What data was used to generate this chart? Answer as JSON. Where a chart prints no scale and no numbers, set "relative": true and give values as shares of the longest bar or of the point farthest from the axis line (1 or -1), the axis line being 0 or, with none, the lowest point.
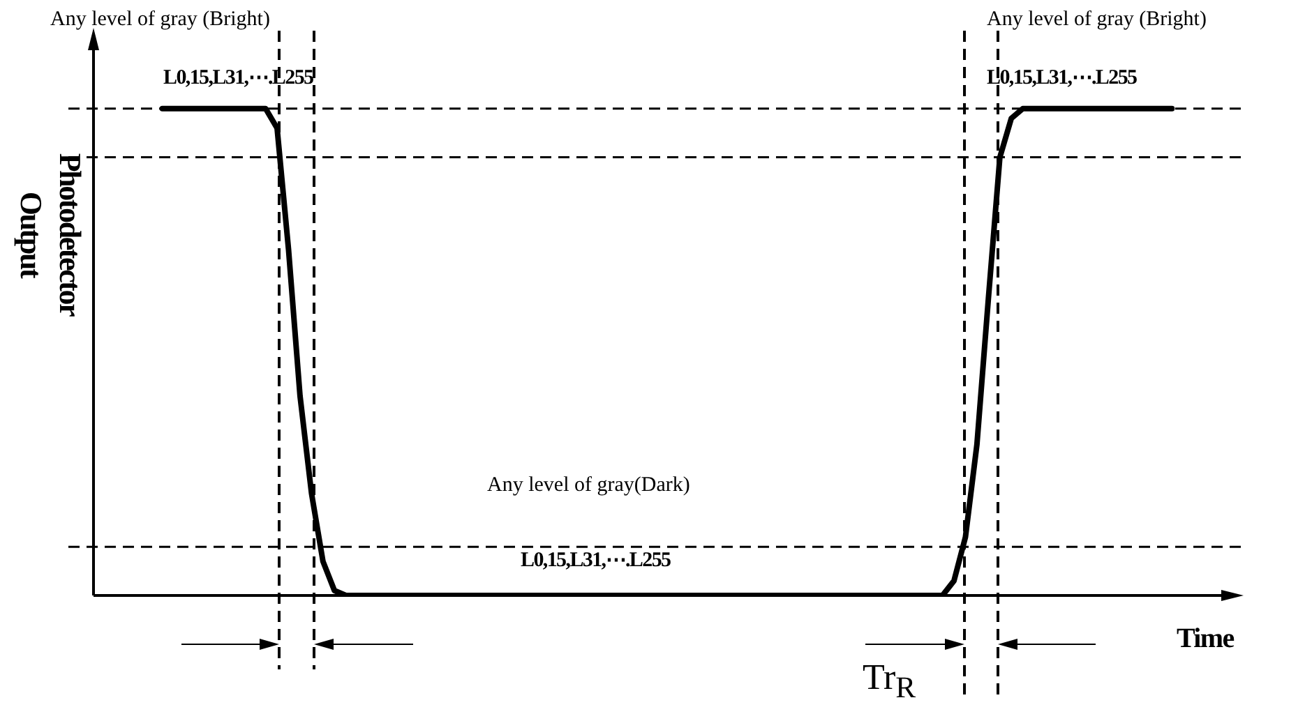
{
  "chart_data": {
    "type": "line",
    "relative": true,
    "xlabel": "Time",
    "ylabel": "Photodetector Output",
    "marker": "none",
    "line_style": "solid",
    "categories": [
      null,
      null,
      null,
      null,
      null,
      null,
      null,
      null,
      null,
      null,
      null,
      null,
      null,
      null,
      null,
      null,
      null,
      null,
      null,
      null,
      null,
      null,
      null,
      null,
      null,
      null,
      null,
      null,
      null,
      null,
      null,
      null,
      null,
      null,
      null,
      null,
      null,
      null,
      null,
      null,
      null,
      null,
      null,
      null,
      null,
      null,
      null,
      null,
      null,
      null,
      null,
      null,
      null,
      null,
      null,
      null,
      null,
      null,
      null,
      null,
      null,
      null,
      null,
      null,
      null,
      null,
      null,
      null,
      null,
      null,
      null,
      null,
      null,
      null,
      null,
      null,
      null,
      null,
      null,
      null,
      null,
      null,
      null,
      null,
      null,
      null,
      null,
      null,
      null,
      null,
      null,
      null,
      null,
      null,
      null,
      null,
      null,
      null,
      null,
      null,
      null
    ],
    "series": [
      {
        "color": "#000000",
        "values": [
          null,
          null,
          null,
          null,
          null,
          null,
          1,
          1,
          1,
          1,
          1,
          1,
          1,
          1,
          1,
          1,
          0.96,
          0.71,
          0.41,
          0.21,
          0.07,
          0.01,
          0,
          0,
          0,
          0,
          0,
          0,
          0,
          0,
          0,
          0,
          0,
          0,
          0,
          0,
          0,
          0,
          0,
          0,
          0,
          0,
          0,
          0,
          0,
          0,
          0,
          0,
          0,
          0,
          0,
          0,
          0,
          0,
          0,
          0,
          0,
          0,
          0,
          0,
          0,
          0,
          0,
          0,
          0,
          0,
          0,
          0,
          0,
          0,
          0,
          0,
          0,
          0,
          0,
          0.03,
          0.12,
          0.31,
          0.61,
          0.9,
          0.98,
          1,
          1,
          1,
          1,
          1,
          1,
          1,
          1,
          1,
          1,
          1,
          1,
          1,
          1,
          null,
          null,
          null,
          null,
          null,
          null
        ]
      }
    ],
    "ref_lines": [
      {
        "axis": "y",
        "value": 1,
        "line_style": "dashed",
        "color": "#000000"
      },
      {
        "axis": "y",
        "value": 0.9,
        "line_style": "dashed",
        "color": "#000000"
      },
      {
        "axis": "y",
        "value": 0.1,
        "line_style": "dashed",
        "color": "#000000"
      }
    ],
    "annotations": [
      "Any level of gray (Bright)",
      "L0,15,L31,⋯.L255",
      "Any level of gray (Bright)",
      "L0,15,L31,⋯.L255",
      "Any level of gray(Dark)",
      "L0,15,L31,⋯.L255",
      "Tr$_{R}$"
    ]
  }
}
